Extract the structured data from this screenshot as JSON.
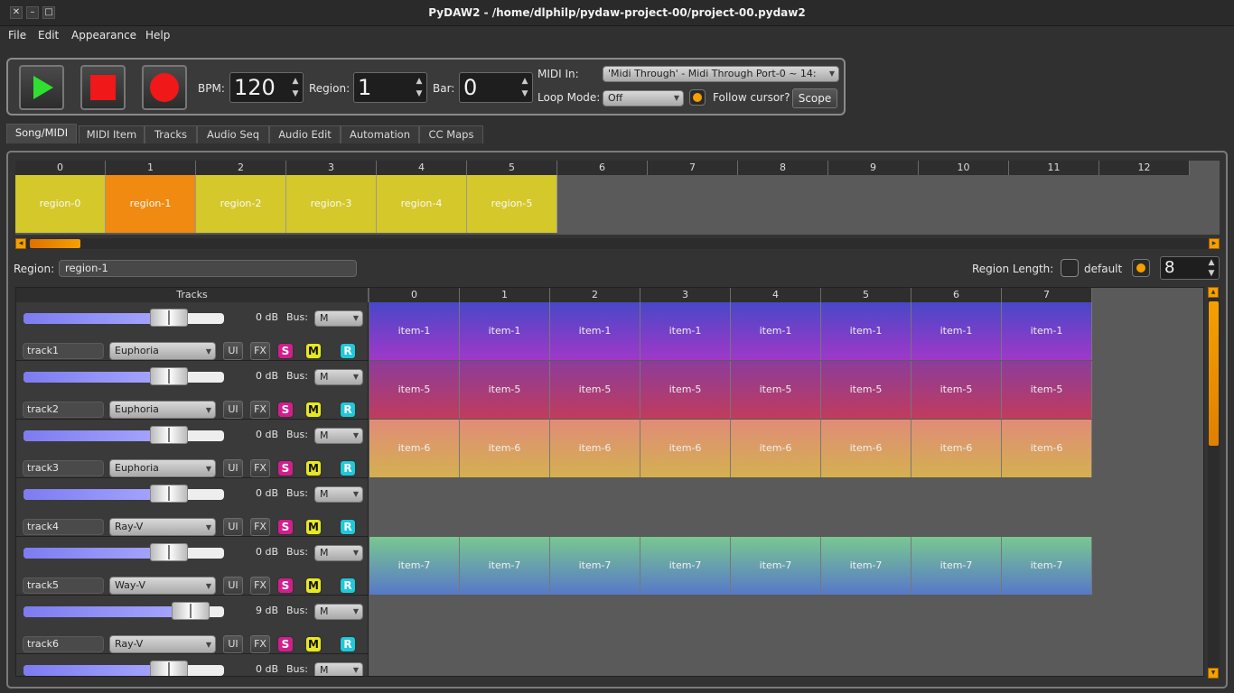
{
  "window": {
    "title": "PyDAW2 - /home/dlphilp/pydaw-project-00/project-00.pydaw2"
  },
  "menu": [
    "File",
    "Edit",
    "Appearance",
    "Help"
  ],
  "transport": {
    "bpm_label": "BPM:",
    "bpm": "120",
    "region_label": "Region:",
    "region": "1",
    "bar_label": "Bar:",
    "bar": "0",
    "midi_in_label": "MIDI In:",
    "midi_in": "'Midi Through' - Midi Through Port-0 ~ 14:",
    "loop_mode_label": "Loop Mode:",
    "loop_mode": "Off",
    "follow_cursor_label": "Follow cursor?",
    "scope_label": "Scope"
  },
  "tabs": [
    "Song/MIDI",
    "MIDI Item",
    "Tracks",
    "Audio Seq",
    "Audio Edit",
    "Automation",
    "CC Maps"
  ],
  "song": {
    "bars": [
      "0",
      "1",
      "2",
      "3",
      "4",
      "5",
      "6",
      "7",
      "8",
      "9",
      "10",
      "11",
      "12"
    ],
    "regions": [
      {
        "name": "region-0",
        "color": "#d4c82a"
      },
      {
        "name": "region-1",
        "color": "#f08a10"
      },
      {
        "name": "region-2",
        "color": "#d4c82a"
      },
      {
        "name": "region-3",
        "color": "#d4c82a"
      },
      {
        "name": "region-4",
        "color": "#d4c82a"
      },
      {
        "name": "region-5",
        "color": "#d4c82a"
      }
    ]
  },
  "region_bar": {
    "region_label": "Region:",
    "region_name": "region-1",
    "length_label": "Region Length:",
    "default_label": "default",
    "length_value": "8"
  },
  "tracks_header": "Tracks",
  "item_bars": [
    "0",
    "1",
    "2",
    "3",
    "4",
    "5",
    "6",
    "7"
  ],
  "tracks": [
    {
      "name": "track1",
      "instrument": "Euphoria",
      "db": "0 dB",
      "bus": "M",
      "volume": 0.73,
      "item": "item-1",
      "item_top": "#4848c8",
      "item_bottom": "#a038c8"
    },
    {
      "name": "track2",
      "instrument": "Euphoria",
      "db": "0 dB",
      "bus": "M",
      "volume": 0.73,
      "item": "item-5",
      "item_top": "#8c3c9c",
      "item_bottom": "#c03c5c"
    },
    {
      "name": "track3",
      "instrument": "Euphoria",
      "db": "0 dB",
      "bus": "M",
      "volume": 0.73,
      "item": "item-6",
      "item_top": "#e08c78",
      "item_bottom": "#d4b050"
    },
    {
      "name": "track4",
      "instrument": "Ray-V",
      "db": "0 dB",
      "bus": "M",
      "volume": 0.73,
      "item": "",
      "item_top": "",
      "item_bottom": ""
    },
    {
      "name": "track5",
      "instrument": "Way-V",
      "db": "0 dB",
      "bus": "M",
      "volume": 0.73,
      "item": "item-7",
      "item_top": "#78c890",
      "item_bottom": "#5878c8"
    },
    {
      "name": "track6",
      "instrument": "Ray-V",
      "db": "9 dB",
      "bus": "M",
      "volume": 0.84,
      "item": "",
      "item_top": "",
      "item_bottom": ""
    },
    {
      "name": "",
      "instrument": "",
      "db": "0 dB",
      "bus": "M",
      "volume": 0.73,
      "item": "",
      "item_top": "",
      "item_bottom": ""
    }
  ],
  "track_buttons": {
    "ui": "UI",
    "fx": "FX",
    "solo": "S",
    "mute": "M",
    "record": "R"
  }
}
